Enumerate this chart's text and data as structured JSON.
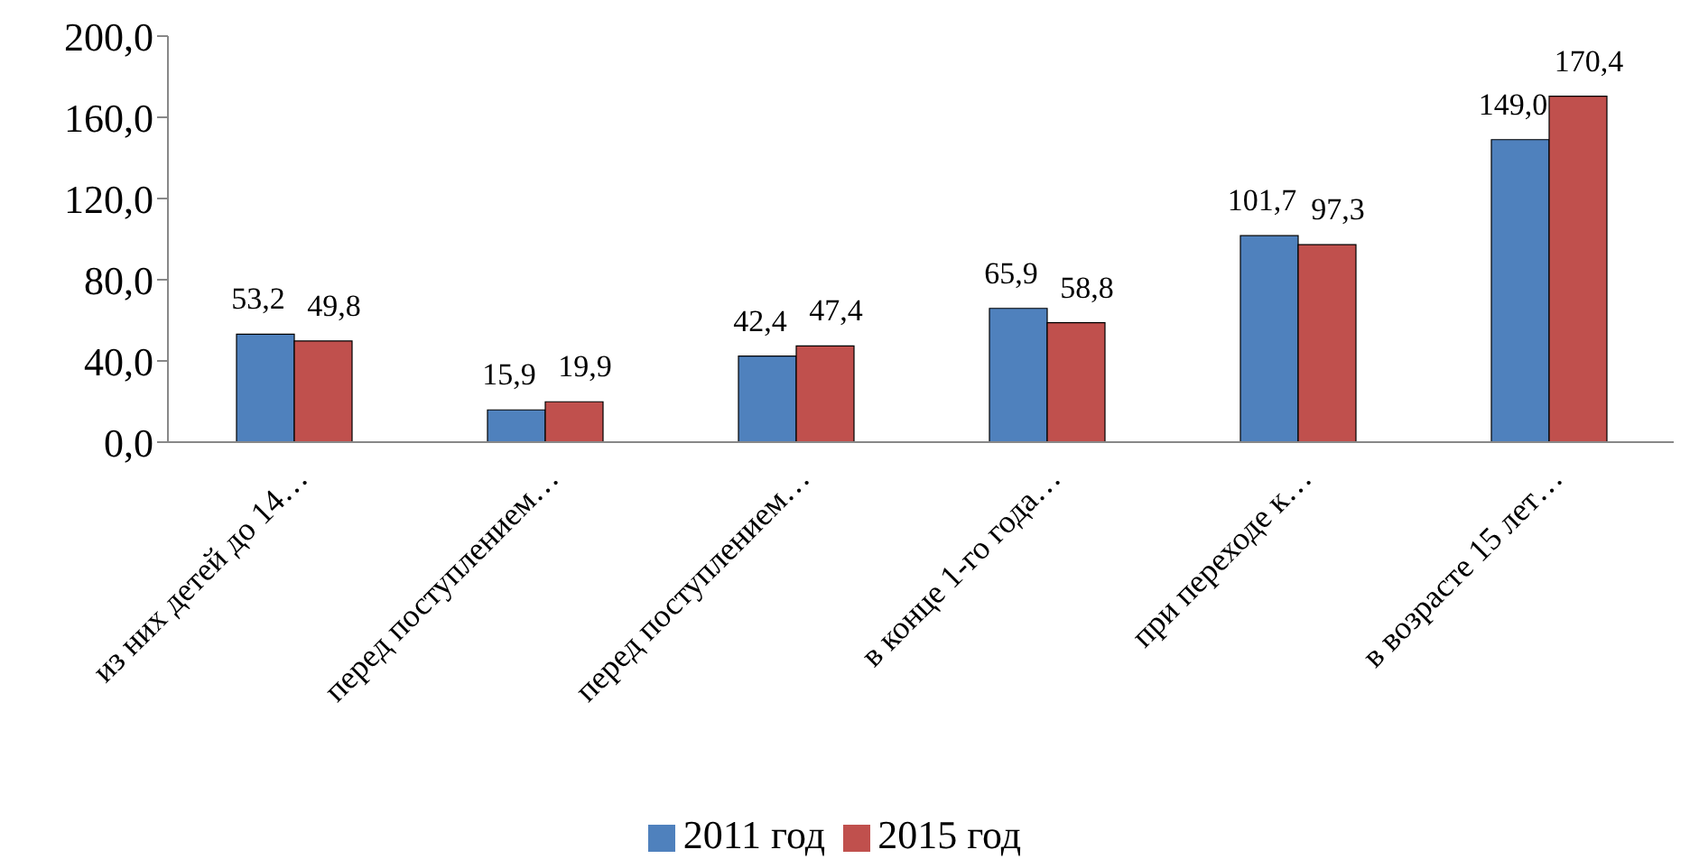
{
  "chart_data": {
    "type": "bar",
    "categories": [
      "из них детей до 14…",
      "перед поступлением…",
      "перед поступлением…",
      "в конце 1-го года…",
      "при переходе к…",
      "в возрасте 15 лет…"
    ],
    "series": [
      {
        "name": "2011 год",
        "color": "#4f81bd",
        "values": [
          53.2,
          15.9,
          42.4,
          65.9,
          101.7,
          149.0
        ],
        "value_labels": [
          "53,2",
          "15,9",
          "42,4",
          "65,9",
          "101,7",
          "149,0"
        ]
      },
      {
        "name": "2015 год",
        "color": "#c0504d",
        "values": [
          49.8,
          19.9,
          47.4,
          58.8,
          97.3,
          170.4
        ],
        "value_labels": [
          "49,8",
          "19,9",
          "47,4",
          "58,8",
          "97,3",
          "170,4"
        ]
      }
    ],
    "ylim": [
      0,
      200
    ],
    "yticks": [
      {
        "value": 0,
        "label": "0,0"
      },
      {
        "value": 40,
        "label": "40,0"
      },
      {
        "value": 80,
        "label": "80,0"
      },
      {
        "value": 120,
        "label": "120,0"
      },
      {
        "value": 160,
        "label": "160,0"
      },
      {
        "value": 200,
        "label": "200,0"
      }
    ],
    "grid": false,
    "legend": "bottom"
  }
}
